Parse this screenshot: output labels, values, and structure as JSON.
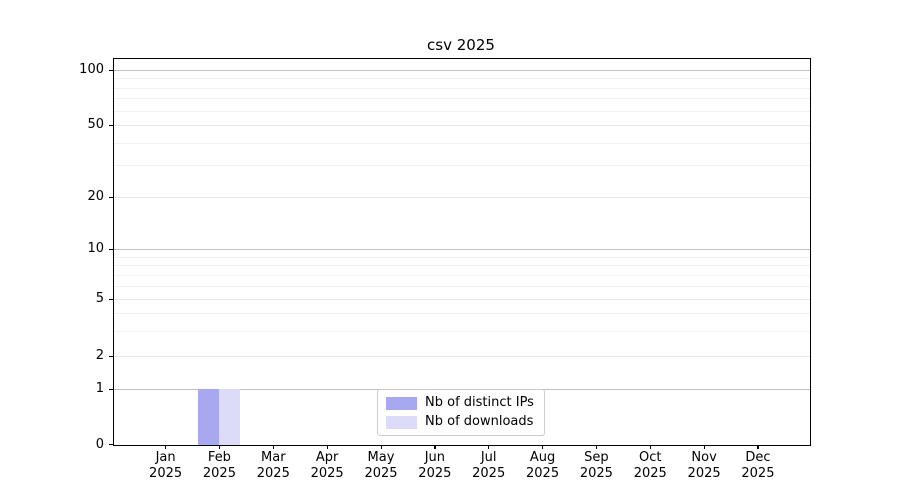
{
  "chart_data": {
    "type": "bar",
    "title": "csv 2025",
    "categories": [
      "Jan 2025",
      "Feb 2025",
      "Mar 2025",
      "Apr 2025",
      "May 2025",
      "Jun 2025",
      "Jul 2025",
      "Aug 2025",
      "Sep 2025",
      "Oct 2025",
      "Nov 2025",
      "Dec 2025"
    ],
    "series": [
      {
        "name": "Nb of distinct IPs",
        "color": "#a8a8f0",
        "values": [
          0,
          1,
          0,
          0,
          0,
          0,
          0,
          0,
          0,
          0,
          0,
          0
        ]
      },
      {
        "name": "Nb of downloads",
        "color": "#dcdcf8",
        "values": [
          0,
          1,
          0,
          0,
          0,
          0,
          0,
          0,
          0,
          0,
          0,
          0
        ]
      }
    ],
    "xlabel": "",
    "ylabel": "",
    "yscale": "symlog",
    "yticks": [
      0,
      1,
      2,
      5,
      10,
      20,
      50,
      100
    ],
    "ylim": [
      0,
      120
    ],
    "grid": "horizontal",
    "legend": {
      "position": "lower-center",
      "entries": [
        "Nb of distinct IPs",
        "Nb of downloads"
      ]
    },
    "colors": {
      "spine": "#000000",
      "grid_major": "#c0c0c0",
      "grid_labeled": "#e8e8e8",
      "grid_minor": "#f2f2f2",
      "background": "#ffffff"
    }
  }
}
